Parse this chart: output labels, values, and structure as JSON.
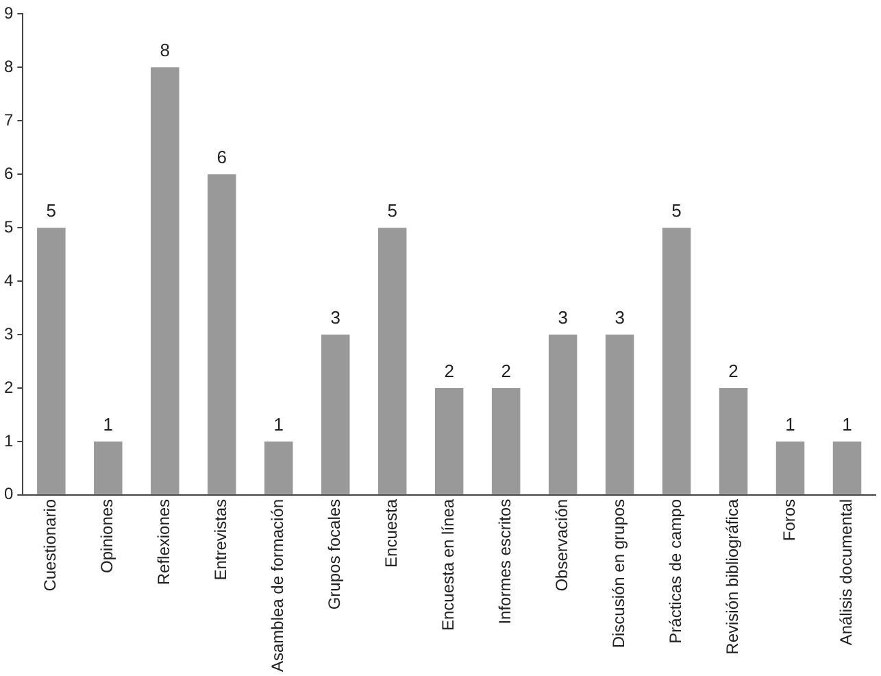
{
  "chart_data": {
    "type": "bar",
    "categories": [
      "Cuestionario",
      "Opiniones",
      "Reflexiones",
      "Entrevistas",
      "Asamblea de formación",
      "Grupos focales",
      "Encuesta",
      "Encuesta en línea",
      "Informes escritos",
      "Observación",
      "Discusión en grupos",
      "Prácticas de campo",
      "Revisión bibliográfica",
      "Foros",
      "Análisis documental"
    ],
    "values": [
      5,
      1,
      8,
      6,
      1,
      3,
      5,
      2,
      2,
      3,
      3,
      5,
      2,
      1,
      1
    ],
    "color": "#999999",
    "ylim": [
      0,
      9
    ],
    "yticks": [
      0,
      1,
      2,
      3,
      4,
      5,
      6,
      7,
      8,
      9
    ],
    "data_labels": true,
    "grid": false,
    "legend": false
  }
}
